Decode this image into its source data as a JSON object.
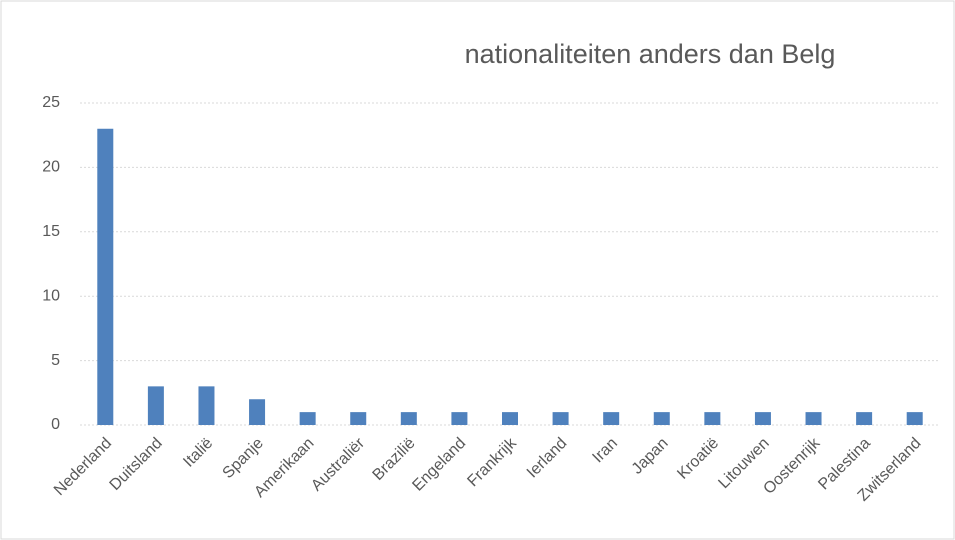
{
  "chart_data": {
    "type": "bar",
    "title": "nationaliteiten anders dan Belg",
    "categories": [
      "Nederland",
      "Duitsland",
      "Italië",
      "Spanje",
      "Amerikaan",
      "Australiër",
      "Brazilië",
      "Engeland",
      "Frankrijk",
      "Ierland",
      "Iran",
      "Japan",
      "Kroatië",
      "Litouwen",
      "Oostenrijk",
      "Palestina",
      "Zwitserland"
    ],
    "values": [
      23,
      3,
      3,
      2,
      1,
      1,
      1,
      1,
      1,
      1,
      1,
      1,
      1,
      1,
      1,
      1,
      1
    ],
    "color": "#4f81bd",
    "ylim": [
      0,
      25
    ],
    "yticks": [
      0,
      5,
      10,
      15,
      20,
      25
    ],
    "grid": true
  }
}
